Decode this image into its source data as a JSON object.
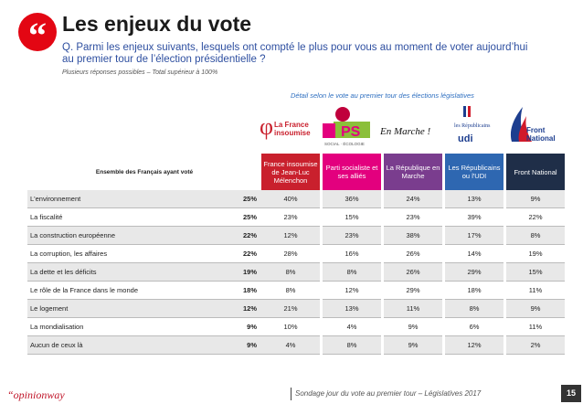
{
  "header": {
    "quote_mark": "“",
    "title": "Les enjeux du vote",
    "question": "Q. Parmi les enjeux suivants, lesquels ont compté le plus pour vous au moment de voter aujourd’hui au premier tour de l’élection présidentielle ?",
    "note": "Plusieurs réponses possibles – Total supérieur à 100%",
    "detail": "Détail selon le vote au premier tour des élections législatives"
  },
  "logos": [
    {
      "name": "france-insoumise-logo",
      "text1": "La France",
      "text2": "insoumise",
      "color": "#c9202d"
    },
    {
      "name": "parti-socialiste-logo",
      "text1": "PS",
      "text2": "SOCIAL · ÉCOLOGIE",
      "color": "#e3007e"
    },
    {
      "name": "en-marche-logo",
      "text1": "En Marche !",
      "text2": "",
      "color": "#111111"
    },
    {
      "name": "republicains-udi-logo",
      "text1": "les Républicains",
      "text2": "udi",
      "color": "#1d3e8f"
    },
    {
      "name": "front-national-logo",
      "text1": "Front",
      "text2": "National",
      "color": "#1d3e8f"
    }
  ],
  "chart_data": {
    "type": "table",
    "row_header": "Ensemble des Français ayant voté",
    "series": [
      {
        "name": "France insoumise de Jean-Luc Mélenchon",
        "color": "#c9202d"
      },
      {
        "name": "Parti socialiste et ses alliés",
        "color": "#e3007e"
      },
      {
        "name": "La République en Marche",
        "color": "#7a3d8e"
      },
      {
        "name": "Les Républicains ou l'UDI",
        "color": "#2e67b1"
      },
      {
        "name": "Front National",
        "color": "#1f2e48"
      }
    ],
    "rows": [
      {
        "label": "L'environnement",
        "all": "25%",
        "values": [
          "40%",
          "36%",
          "24%",
          "13%",
          "9%"
        ]
      },
      {
        "label": "La fiscalité",
        "all": "25%",
        "values": [
          "23%",
          "15%",
          "23%",
          "39%",
          "22%"
        ]
      },
      {
        "label": "La construction européenne",
        "all": "22%",
        "values": [
          "12%",
          "23%",
          "38%",
          "17%",
          "8%"
        ]
      },
      {
        "label": "La corruption, les affaires",
        "all": "22%",
        "values": [
          "28%",
          "16%",
          "26%",
          "14%",
          "19%"
        ]
      },
      {
        "label": "La dette et les déficits",
        "all": "19%",
        "values": [
          "8%",
          "8%",
          "26%",
          "29%",
          "15%"
        ]
      },
      {
        "label": "Le rôle de la France dans le monde",
        "all": "18%",
        "values": [
          "8%",
          "12%",
          "29%",
          "18%",
          "11%"
        ]
      },
      {
        "label": "Le logement",
        "all": "12%",
        "values": [
          "21%",
          "13%",
          "11%",
          "8%",
          "9%"
        ]
      },
      {
        "label": "La mondialisation",
        "all": "9%",
        "values": [
          "10%",
          "4%",
          "9%",
          "6%",
          "11%"
        ]
      },
      {
        "label": "Aucun de ceux là",
        "all": "9%",
        "values": [
          "4%",
          "8%",
          "9%",
          "12%",
          "2%"
        ]
      }
    ]
  },
  "footer": {
    "brand": "“opinionway",
    "source": "Sondage jour du vote au premier tour – Législatives 2017",
    "page": "15"
  },
  "colors": {
    "accent": "#e30613",
    "row_band": "#e8e8e8",
    "question": "#2e4fa0"
  }
}
